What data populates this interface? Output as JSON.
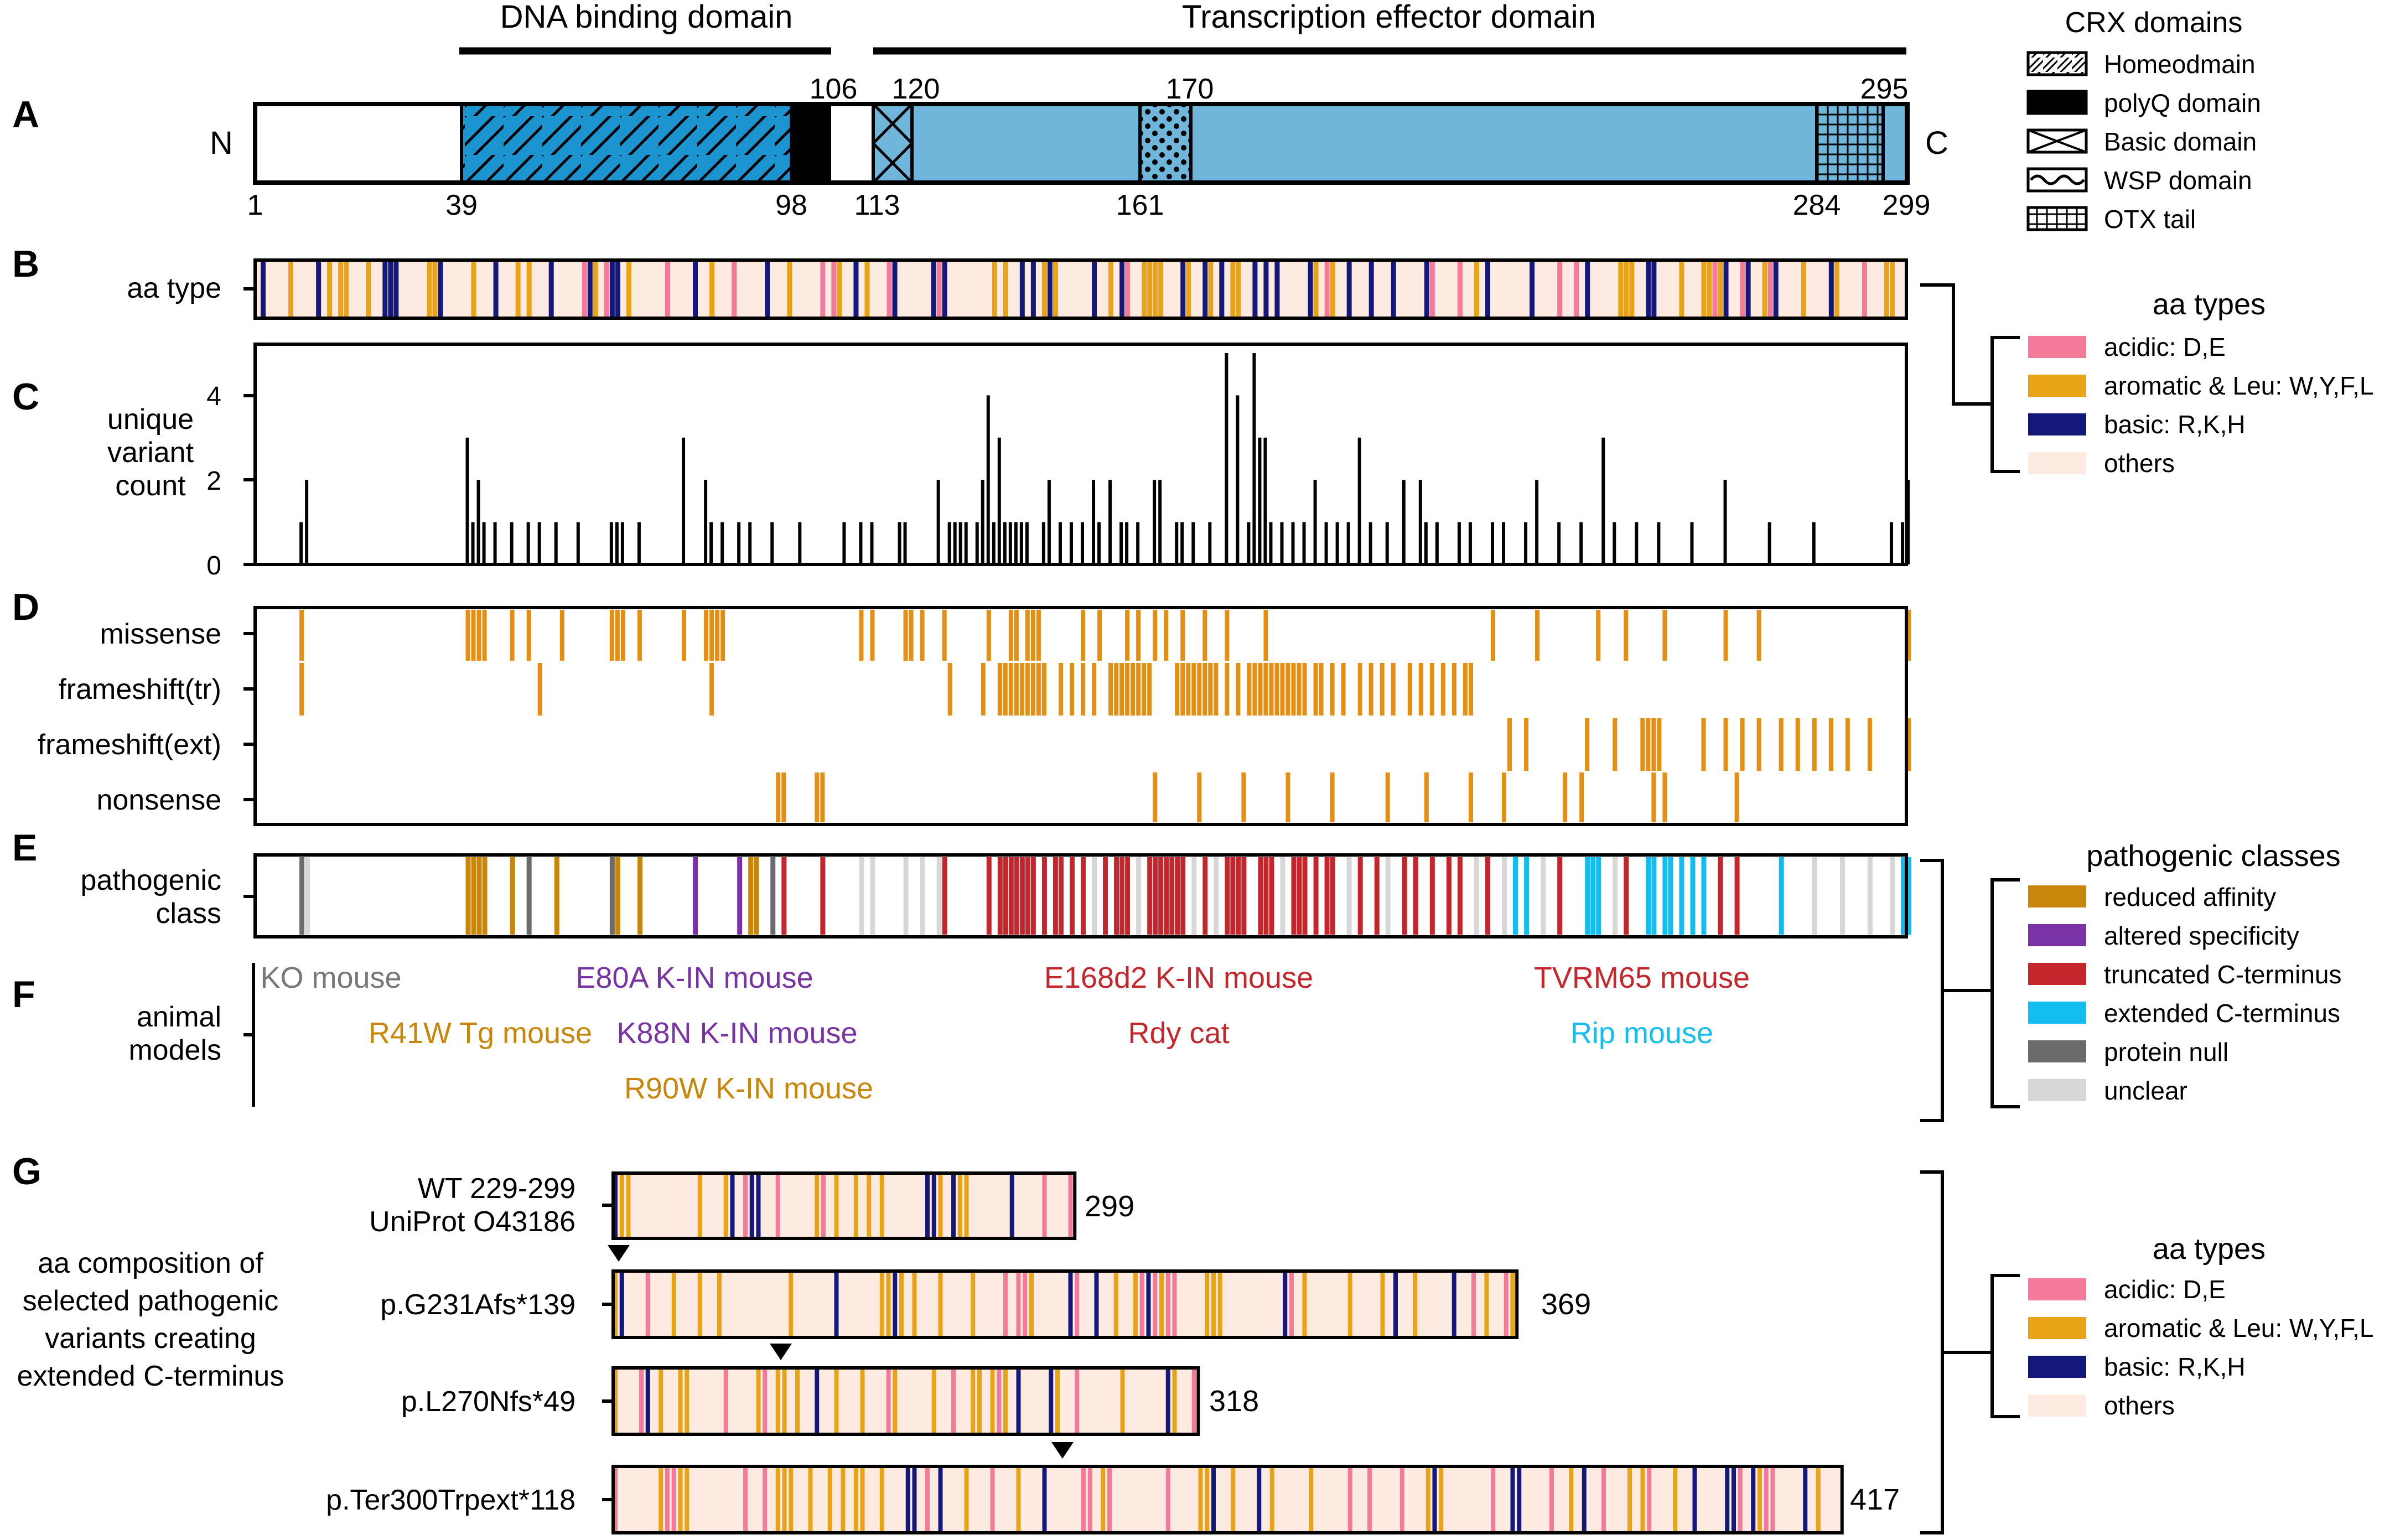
{
  "panel_letters": [
    "A",
    "B",
    "C",
    "D",
    "E",
    "F",
    "G"
  ],
  "panel_a": {
    "top_labels": {
      "dna": "DNA binding domain",
      "effector": "Transcription effector domain"
    },
    "n_label": "N",
    "c_label": "C",
    "positions_above": [
      "106",
      "120",
      "170",
      "295"
    ],
    "positions_below": [
      "1",
      "39",
      "98",
      "113",
      "161",
      "284",
      "299"
    ]
  },
  "domain_legend": {
    "title": "CRX domains",
    "items": [
      "Homeodmain",
      "polyQ domain",
      "Basic domain",
      "WSP domain",
      "OTX tail"
    ]
  },
  "panel_b": {
    "label": "aa type"
  },
  "panel_c": {
    "label_lines": [
      "unique",
      "variant",
      "count"
    ],
    "ticks": [
      "0",
      "2",
      "4"
    ]
  },
  "panel_d": {
    "rows": [
      "missense",
      "frameshift(tr)",
      "frameshift(ext)",
      "nonsense"
    ]
  },
  "panel_e": {
    "label_lines": [
      "pathogenic",
      "class"
    ]
  },
  "panel_f": {
    "label_lines": [
      "animal",
      "models"
    ],
    "models": [
      "KO mouse",
      "R41W Tg mouse",
      "E80A K-IN mouse",
      "K88N K-IN mouse",
      "R90W K-IN mouse",
      "E168d2 K-IN mouse",
      "Rdy cat",
      "TVRM65 mouse",
      "Rip mouse"
    ]
  },
  "panel_g": {
    "caption_lines": [
      "aa composition of",
      "selected pathogenic",
      "variants creating",
      "extended C-terminus"
    ],
    "variants": [
      {
        "name_lines": [
          "WT 229-299",
          "UniProt O43186"
        ],
        "end": "299"
      },
      {
        "name_lines": [
          "p.G231Afs*139"
        ],
        "end": "369"
      },
      {
        "name_lines": [
          "p.L270Nfs*49"
        ],
        "end": "318"
      },
      {
        "name_lines": [
          "p.Ter300Trpext*118"
        ],
        "end": "417"
      }
    ]
  },
  "aa_legend": {
    "title": "aa types",
    "items": [
      "acidic: D,E",
      "aromatic & Leu: W,Y,F,L",
      "basic: R,K,H",
      "others"
    ]
  },
  "class_legend": {
    "title": "pathogenic classes",
    "items": [
      "reduced affinity",
      "altered specificity",
      "truncated C-terminus",
      "extended C-terminus",
      "protein null",
      "unclear"
    ]
  },
  "colors": {
    "acidic": "#f47a9a",
    "aromatic": "#e9a316",
    "basic": "#13187a",
    "others": "#fdebe2",
    "dna_domain": "#1c94d0",
    "effector_domain": "#70b6da",
    "variant_orange": "#e48f12",
    "reduced_affinity": "#c8860b",
    "altered_specificity": "#7a33a6",
    "truncated": "#c4262c",
    "extended": "#14bdf0",
    "protein_null": "#6b6b6b",
    "unclear": "#d7d7d7",
    "model_gray": "#777777"
  }
}
